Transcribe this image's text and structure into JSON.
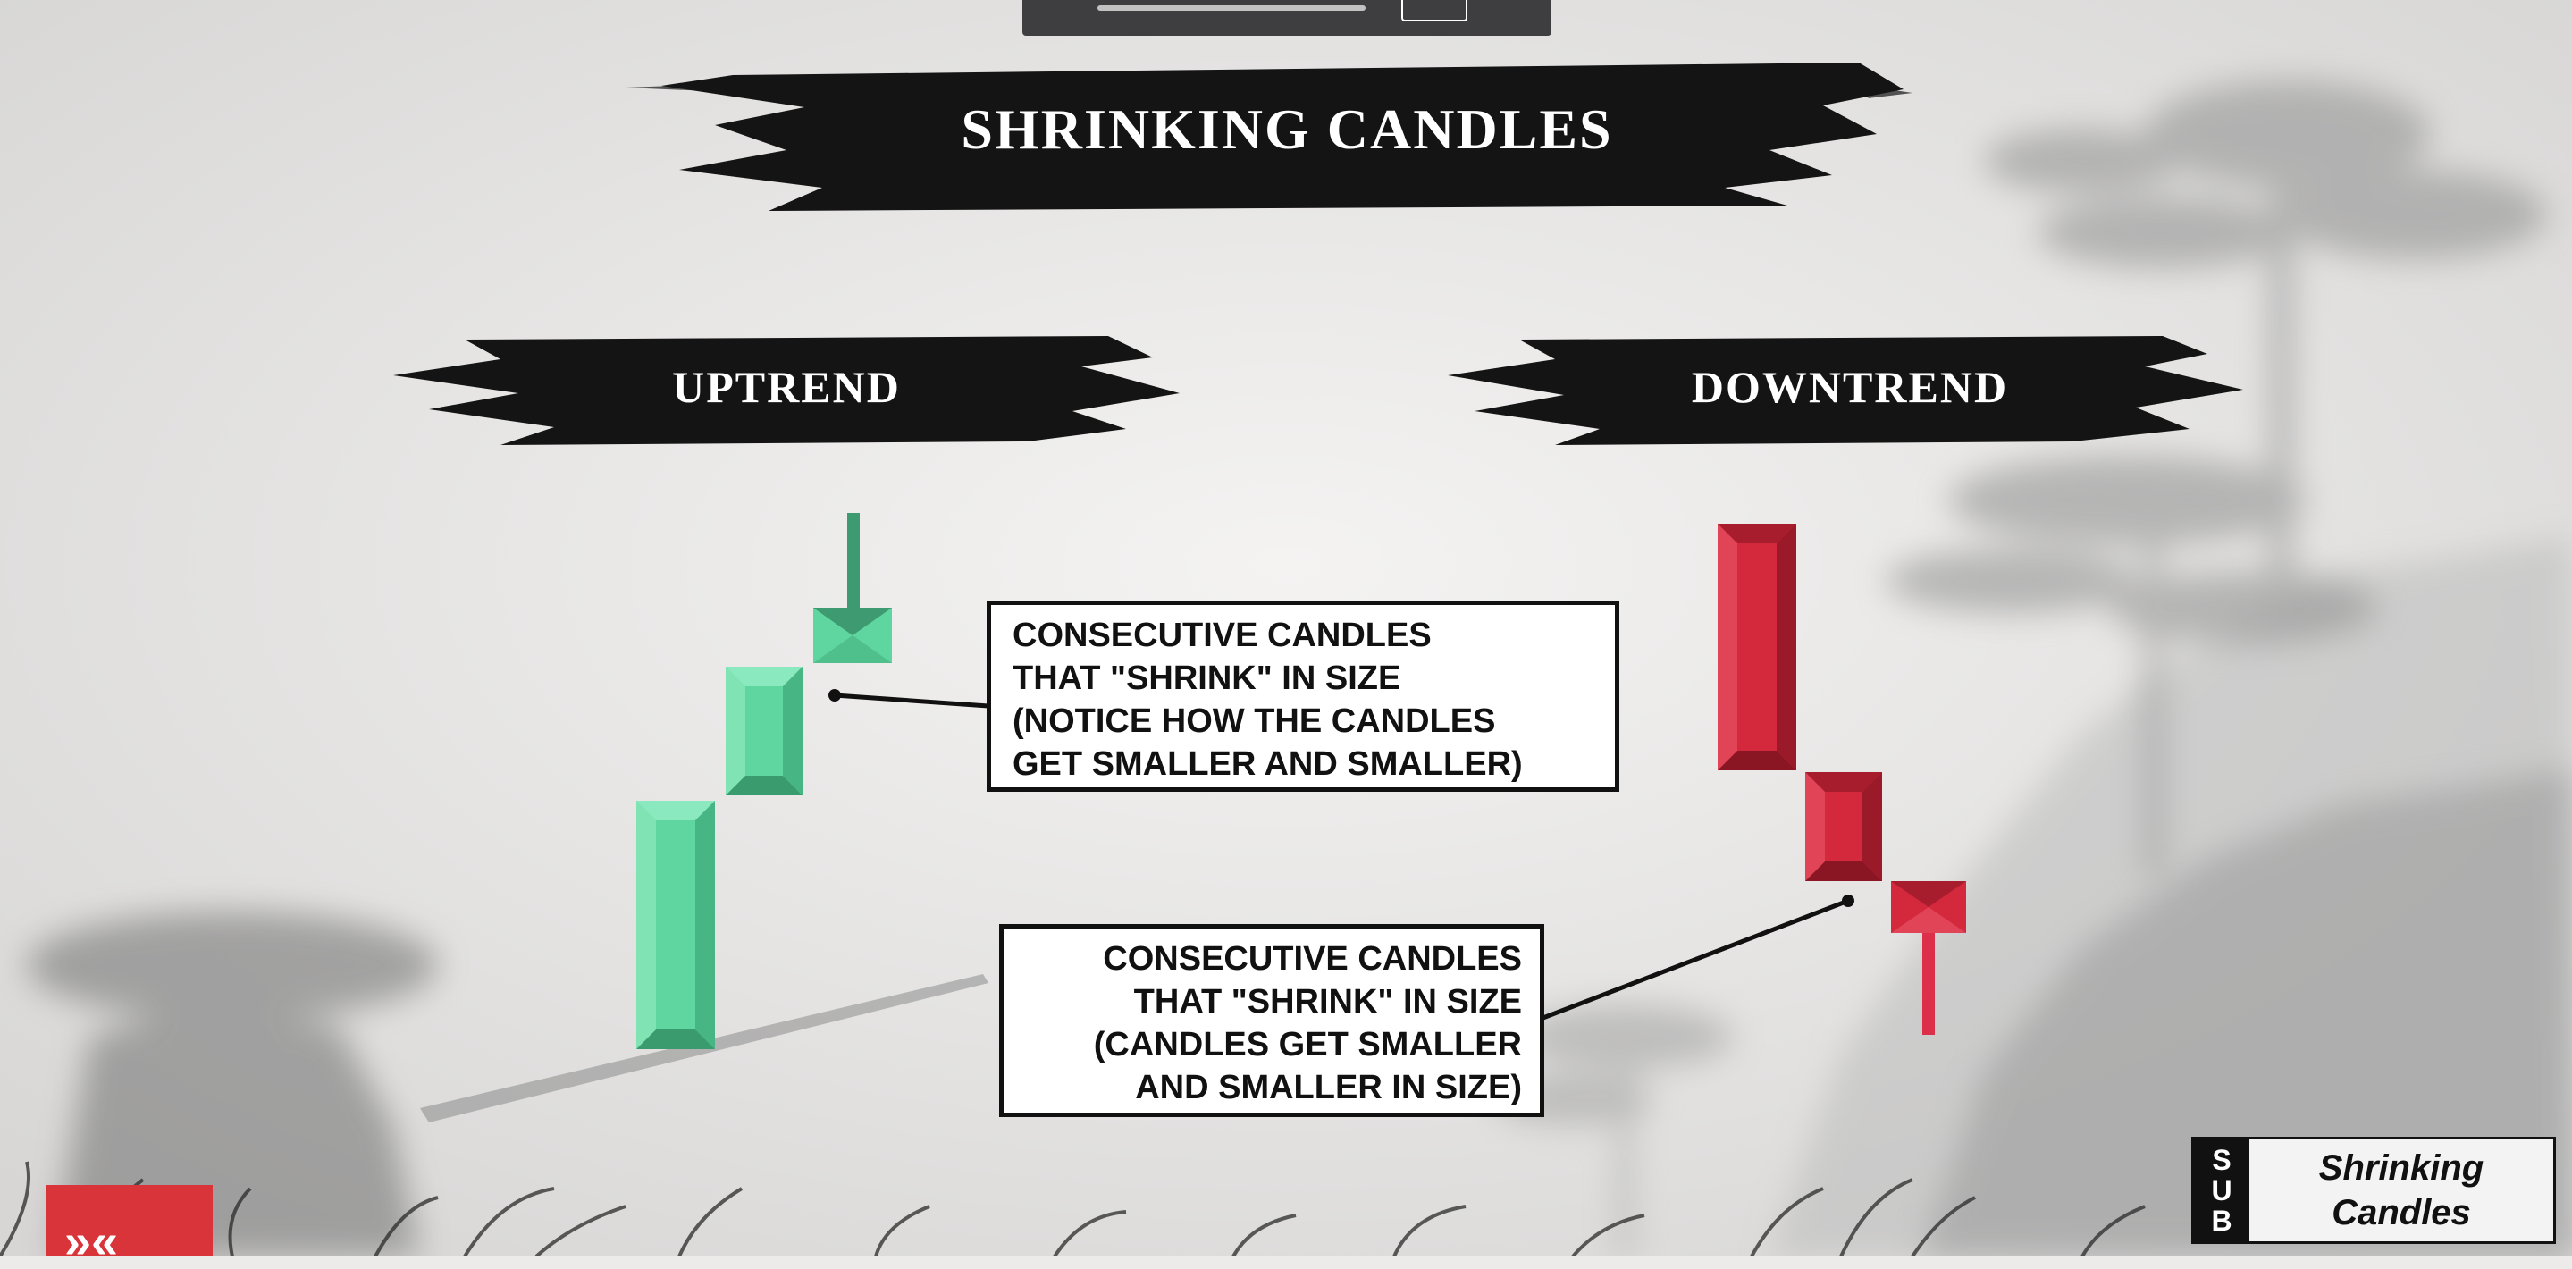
{
  "title": "SHRINKING CANDLES",
  "sections": {
    "uptrend": "UPTREND",
    "downtrend": "DOWNTREND"
  },
  "callouts": {
    "uptrend": [
      "CONSECUTIVE CANDLES",
      "THAT \"SHRINK\" IN SIZE",
      "(NOTICE HOW THE CANDLES",
      "GET SMALLER AND SMALLER)"
    ],
    "downtrend": [
      "CONSECUTIVE CANDLES",
      "THAT \"SHRINK\" IN SIZE",
      "(CANDLES GET SMALLER",
      "AND SMALLER IN SIZE)"
    ]
  },
  "badge": {
    "sub": [
      "S",
      "U",
      "B"
    ],
    "title": [
      "Shrinking",
      "Candles"
    ]
  },
  "colors": {
    "bullish": "#5fd6a0",
    "bullish_dark": "#3a9b6f",
    "bullish_wick": "#3e9a70",
    "bearish": "#d4283d",
    "bearish_dark": "#9a1a2a",
    "bearish_wick": "#dc2f4a",
    "banner": "#141414"
  },
  "icons": [
    "sub-badge-icon",
    "corner-logo-icon"
  ]
}
